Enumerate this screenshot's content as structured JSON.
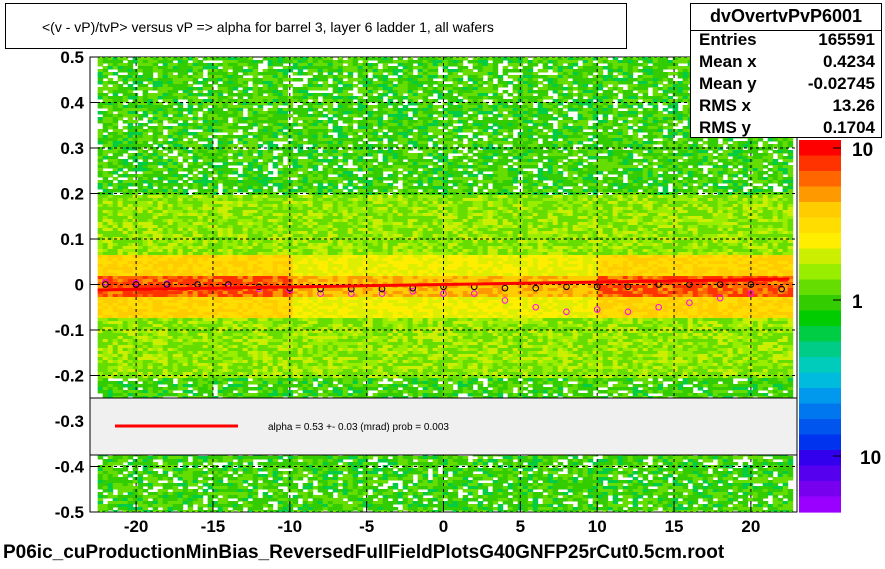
{
  "chart_data": {
    "type": "heatmap",
    "title": "<(v - vP)/tvP>  versus   vP => alpha for barrel 3, layer 6 ladder 1, all wafers",
    "xlabel": "",
    "ylabel": "",
    "xlim": [
      -23,
      23
    ],
    "ylim": [
      -0.5,
      0.5
    ],
    "x_ticks": [
      "-20",
      "-15",
      "-10",
      "-5",
      "0",
      "5",
      "10",
      "15",
      "20"
    ],
    "y_ticks": [
      "0.5",
      "0.4",
      "0.3",
      "0.2",
      "0.1",
      "0",
      "-0.1",
      "-0.2",
      "-0.3",
      "-0.4",
      "-0.5"
    ],
    "z_scale": "log",
    "z_ticks": [
      "10",
      "1",
      "10"
    ],
    "grid": true,
    "fit_line": {
      "x": [
        -22.5,
        22.5
      ],
      "y": [
        -0.012,
        0.012
      ],
      "color": "#ff0000"
    },
    "profile_black": {
      "x": [
        -22,
        -20,
        -18,
        -16,
        -14,
        -12,
        -10,
        -8,
        -6,
        -4,
        -2,
        0,
        2,
        4,
        6,
        8,
        10,
        12,
        14,
        16,
        18,
        20,
        22
      ],
      "y": [
        0.0,
        0.0,
        0.0,
        0.0,
        0.0,
        -0.005,
        -0.008,
        -0.01,
        -0.01,
        -0.01,
        -0.008,
        -0.005,
        -0.005,
        -0.008,
        -0.008,
        -0.005,
        -0.005,
        -0.005,
        0.0,
        0.0,
        0.0,
        0.0,
        -0.01
      ]
    },
    "profile_magenta": {
      "x": [
        -22,
        -20,
        -18,
        -16,
        -14,
        -12,
        -10,
        -8,
        -6,
        -4,
        -2,
        0,
        2,
        4,
        6,
        8,
        10,
        12,
        14,
        16,
        18,
        20,
        22
      ],
      "y": [
        0.005,
        0.003,
        0.002,
        0.0,
        -0.005,
        -0.01,
        -0.012,
        -0.02,
        -0.02,
        -0.02,
        -0.015,
        -0.02,
        -0.02,
        -0.035,
        -0.05,
        -0.06,
        -0.055,
        -0.06,
        -0.05,
        -0.04,
        -0.03,
        -0.02,
        -0.01
      ]
    }
  },
  "legend": {
    "line_color": "#ff0000",
    "text": "alpha =    0.53 +-  0.03 (mrad) prob = 0.003"
  },
  "stats": {
    "name": "dvOvertvPvP6001",
    "rows": [
      {
        "label": "Entries",
        "value": "165591"
      },
      {
        "label": "Mean x",
        "value": "0.4234"
      },
      {
        "label": "Mean y",
        "value": "-0.02745"
      },
      {
        "label": "RMS x",
        "value": "13.26"
      },
      {
        "label": "RMS y",
        "value": "0.1704"
      }
    ]
  },
  "footer": "P06ic_cuProductionMinBias_ReversedFullFieldPlotsG40GNFP25rCut0.5cm.root"
}
